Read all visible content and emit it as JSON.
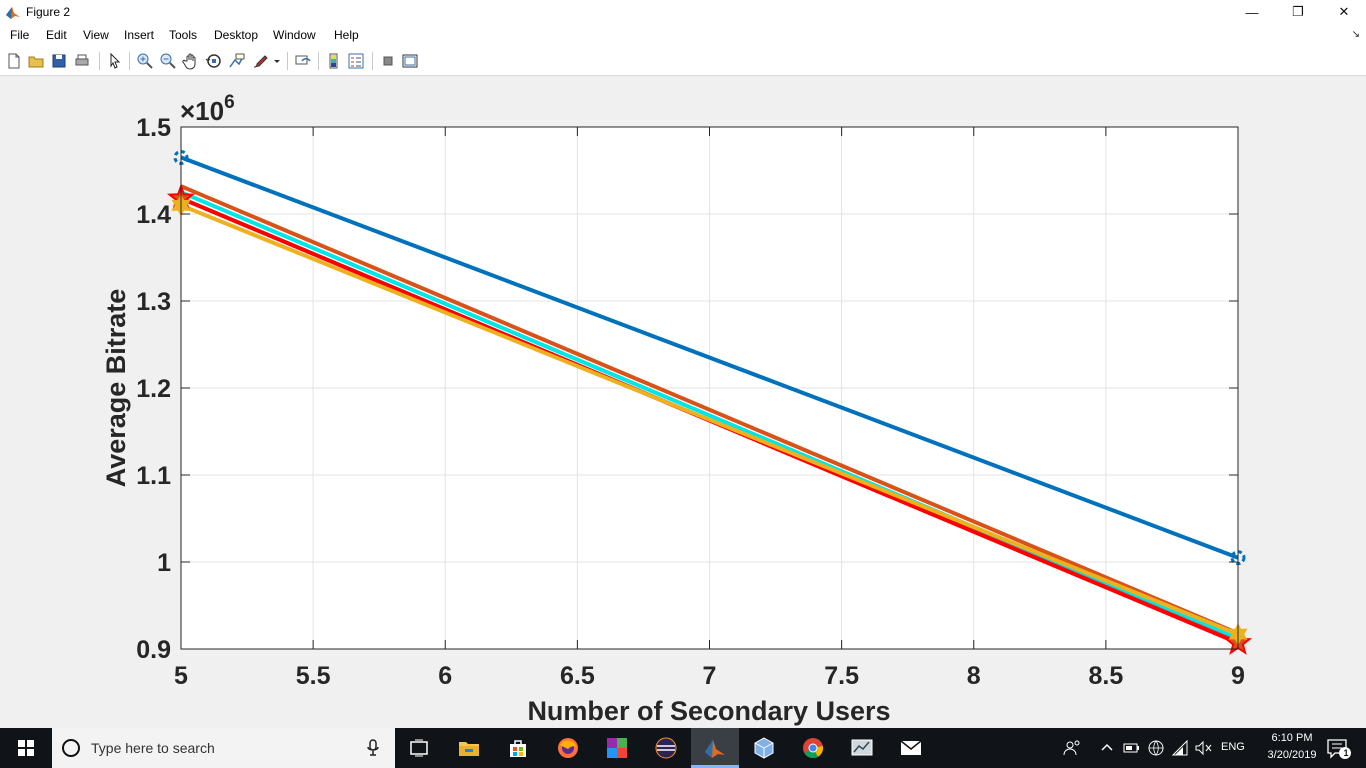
{
  "window": {
    "title": "Figure 2",
    "minimize_glyph": "—",
    "restore_glyph": "❐",
    "close_glyph": "✕"
  },
  "menu": {
    "items": [
      "File",
      "Edit",
      "View",
      "Insert",
      "Tools",
      "Desktop",
      "Window",
      "Help"
    ],
    "dock_glyph": "↘"
  },
  "toolbar": {
    "buttons": [
      "new-figure",
      "open-file",
      "save-figure",
      "print-figure",
      "edit-plot",
      "zoom-in",
      "zoom-out",
      "pan",
      "rotate-3d",
      "data-cursor",
      "brush",
      "link-plot",
      "insert-colorbar",
      "insert-legend",
      "hide-plot-tools",
      "show-plot-tools"
    ]
  },
  "chart_data": {
    "type": "line",
    "xlabel": "Number of Secondary Users",
    "ylabel": "Average Bitrate",
    "y_exponent": "×10",
    "y_exponent_power": "6",
    "xlim": [
      5,
      9
    ],
    "ylim": [
      0.9,
      1.5
    ],
    "xticks": [
      "5",
      "5.5",
      "6",
      "6.5",
      "7",
      "7.5",
      "8",
      "8.5",
      "9"
    ],
    "yticks": [
      "0.9",
      "1",
      "1.1",
      "1.2",
      "1.3",
      "1.4",
      "1.5"
    ],
    "grid": true,
    "legend": "none",
    "series": [
      {
        "x": [
          5,
          9
        ],
        "y": [
          1.465,
          1.005
        ],
        "color": "#0072bd",
        "marker": "circle"
      },
      {
        "x": [
          5,
          9
        ],
        "y": [
          1.432,
          0.918
        ],
        "color": "#d95319",
        "marker": "none"
      },
      {
        "x": [
          5,
          9
        ],
        "y": [
          1.425,
          0.912
        ],
        "color": "#00e5e5",
        "marker": "none"
      },
      {
        "x": [
          5,
          9
        ],
        "y": [
          1.418,
          0.908
        ],
        "color": "#7f7f7f",
        "marker": "none"
      },
      {
        "x": [
          5,
          9
        ],
        "y": [
          1.418,
          0.907
        ],
        "color": "#ff0000",
        "marker": "pentagram"
      },
      {
        "x": [
          5,
          9
        ],
        "y": [
          1.41,
          0.917
        ],
        "color": "#edb120",
        "marker": "hexagram"
      }
    ]
  },
  "taskbar": {
    "search_placeholder": "Type here to search",
    "language": "ENG",
    "time": "6:10 PM",
    "date": "3/20/2019",
    "notification_count": "1"
  }
}
